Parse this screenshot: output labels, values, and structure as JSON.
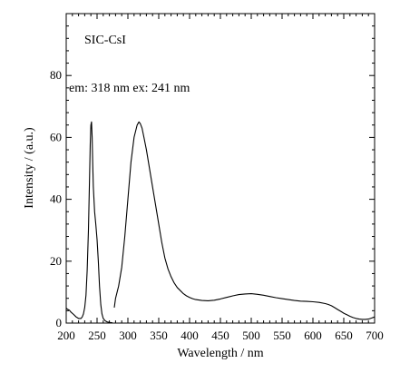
{
  "chart_data": {
    "type": "line",
    "title": "",
    "xlabel": "Wavelength / nm",
    "ylabel": "Intensity / (a.u.)",
    "xlim": [
      200,
      700
    ],
    "ylim": [
      0,
      100
    ],
    "xticks": [
      200,
      250,
      300,
      350,
      400,
      450,
      500,
      550,
      600,
      650,
      700
    ],
    "yticks": [
      0,
      20,
      40,
      60,
      80
    ],
    "grid": false,
    "legend": "none",
    "annotations": [
      "SIC-CsI",
      "em: 318 nm ex: 241 nm"
    ],
    "series": [
      {
        "role": "excitation",
        "x": [
          200,
          202,
          205,
          208,
          212,
          216,
          220,
          224,
          226,
          228,
          230,
          232,
          234,
          236,
          238,
          239,
          240,
          241,
          242,
          243,
          244,
          246,
          248,
          250,
          252,
          254,
          256,
          258,
          260,
          263,
          266,
          270,
          275
        ],
        "y": [
          4.8,
          4.5,
          4.2,
          3.5,
          2.8,
          2.0,
          1.5,
          1.5,
          2.0,
          3.0,
          5.0,
          9.0,
          17.0,
          30.0,
          48.0,
          58.0,
          64.0,
          65.0,
          60.0,
          52.0,
          44.0,
          36.0,
          32.0,
          27.0,
          20.0,
          12.0,
          6.0,
          3.0,
          1.5,
          0.8,
          0.4,
          0.2,
          0.1
        ]
      },
      {
        "role": "emission",
        "x": [
          278,
          280,
          285,
          290,
          295,
          300,
          305,
          310,
          315,
          318,
          320,
          323,
          326,
          330,
          335,
          340,
          345,
          350,
          355,
          360,
          365,
          370,
          375,
          380,
          385,
          390,
          395,
          400,
          405,
          410,
          420,
          430,
          440,
          450,
          460,
          470,
          480,
          490,
          500,
          510,
          520,
          530,
          540,
          550,
          560,
          570,
          580,
          590,
          600,
          610,
          620,
          625,
          630,
          635,
          640,
          645,
          650,
          655,
          660,
          665,
          670,
          675,
          680,
          685,
          690,
          695,
          700
        ],
        "y": [
          5.0,
          8.0,
          12.0,
          18.0,
          28.0,
          40.0,
          52.0,
          60.0,
          64.0,
          65.0,
          64.5,
          63.0,
          60.0,
          56.0,
          50.0,
          44.0,
          38.0,
          32.0,
          26.0,
          21.0,
          17.5,
          15.0,
          13.0,
          11.5,
          10.5,
          9.5,
          8.8,
          8.3,
          7.9,
          7.6,
          7.3,
          7.2,
          7.4,
          7.8,
          8.3,
          8.8,
          9.2,
          9.4,
          9.5,
          9.3,
          9.0,
          8.6,
          8.2,
          7.9,
          7.6,
          7.3,
          7.1,
          7.0,
          6.9,
          6.7,
          6.3,
          6.0,
          5.6,
          5.0,
          4.4,
          3.8,
          3.2,
          2.7,
          2.2,
          1.8,
          1.5,
          1.3,
          1.2,
          1.2,
          1.3,
          1.6,
          2.0
        ]
      }
    ]
  }
}
